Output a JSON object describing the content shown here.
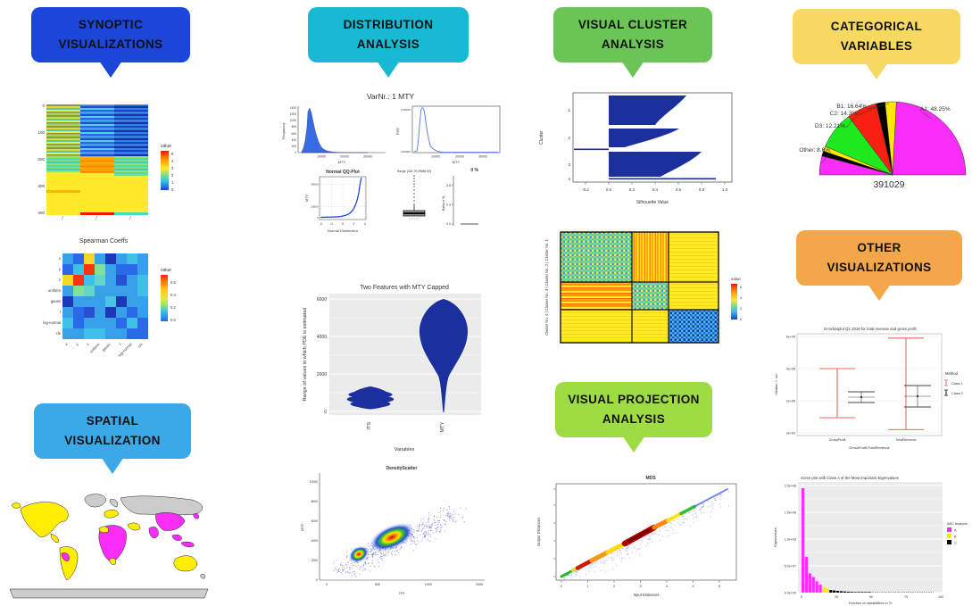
{
  "badges": {
    "synoptic": {
      "label": "SYNOPTIC VISUALIZATIONS",
      "color": "#1b46d9"
    },
    "distribution": {
      "label": "DISTRIBUTION ANALYSIS",
      "color": "#17b9d3"
    },
    "cluster": {
      "label": "VISUAL CLUSTER ANALYSIS",
      "color": "#6ac456"
    },
    "categorical": {
      "label": "CATEGORICAL VARIABLES",
      "color": "#f7d961"
    },
    "spatial": {
      "label": "SPATIAL VISUALIZATION",
      "color": "#3ba8e8"
    },
    "projection": {
      "label": "VISUAL PROJECTION ANALYSIS",
      "color": "#9fdb43"
    },
    "other": {
      "label": "OTHER VISUALIZATIONS",
      "color": "#f4a64a"
    }
  },
  "charts": {
    "synoptic_heatmap": {
      "yticks": [
        "0",
        "100",
        "200",
        "300",
        "400"
      ],
      "legend_title": "value",
      "legend_ticks": [
        "5",
        "4",
        "3",
        "2",
        "1",
        "0"
      ]
    },
    "spearman": {
      "title": "Spearman Coeffs",
      "labels": [
        "x",
        "y",
        "z",
        "uniform",
        "gauss",
        "t",
        "log-normal",
        "chi"
      ],
      "legend_title": "value",
      "legend_ticks": [
        "0.6",
        "0.4",
        "0.2",
        "0.0"
      ]
    },
    "distribution": {
      "panel_title": "VarNr.: 1 MTY"
    },
    "hist": {
      "ylabel": "Frequency",
      "yticks": [
        "1400",
        "1200",
        "1000",
        "800",
        "600",
        "400",
        "200",
        "0"
      ],
      "xticks": [
        "10000",
        "20000",
        "30000"
      ],
      "xlabel": "MTY"
    },
    "pde": {
      "ylabel": "PDE",
      "yticks": [
        "0.00015",
        "0.00000"
      ],
      "xticks": [
        "10000",
        "20000",
        "30000"
      ],
      "xlabel": "MTY"
    },
    "qq": {
      "title": "Normal QQ-Plot",
      "ylabel": "MTY",
      "xlabel": "Normal Distribution",
      "xticks": [
        "-4",
        "-2",
        "0",
        "2",
        "4"
      ],
      "yticks": [
        "30000",
        "10000",
        "0"
      ]
    },
    "box": {
      "title": "Range [315.79,39884.92]"
    },
    "nans": {
      "pct": "0 %",
      "ylabel": "NaNs in %",
      "yticks": [
        "0.8",
        "0.4",
        "0.0"
      ]
    },
    "violin": {
      "title": "Two Features with MTY Capped",
      "ylabel": "Range of values in which PDE is estimated",
      "xlabel": "Variables",
      "categories": [
        "ITS",
        "MTY"
      ],
      "yticks": [
        "6000",
        "4000",
        "2000",
        "0"
      ]
    },
    "densityscatter": {
      "title": "DensityScatter",
      "xlabel": "ITS",
      "ylabel": "MTY",
      "xticks": [
        "0",
        "500",
        "1000",
        "1500"
      ],
      "yticks": [
        "10000",
        "8000",
        "6000",
        "4000",
        "2000",
        "0"
      ]
    },
    "silhouette": {
      "ylabel": "Cluster",
      "xlabel": "Silhouette Value",
      "yticks": [
        "1",
        "2",
        "3",
        "4"
      ],
      "xticks": [
        "-0.2",
        "0.0",
        "0.2",
        "0.4",
        "0.6",
        "0.8",
        "1.0"
      ]
    },
    "clusterheat": {
      "ylabel": "Cluster No. 4 | Cluster No. 3 | Cluster No. 2 | Cluster No. 1",
      "legend_title": "value",
      "legend_ticks": [
        "6",
        "4",
        "2",
        "0"
      ]
    },
    "mds": {
      "title": "MDS",
      "xlabel": "Input Distances",
      "ylabel": "Output Distances",
      "xticks": [
        "0",
        "1",
        "2",
        "3",
        "4",
        "5",
        "6"
      ]
    },
    "pie": {
      "label_a1": "A1: 48.25%",
      "label_b1": "B1: 16.64%",
      "label_c2": "C2: 14.3%",
      "label_d3": "D3: 12.21%",
      "label_other": "Other: 8.6%",
      "caption": "391029"
    },
    "errorbar": {
      "title": "Errorbarplot Q1 2018 for total revenue and gross profit",
      "ylabel": "Median +- sd",
      "xlabel": "GrossProfit/TotalRevenue",
      "categories": [
        "GrossProfit",
        "TotalRevenue"
      ],
      "yticks": [
        "6e+05",
        "4e+05",
        "2e+05",
        "0e+00"
      ],
      "legend_title": "Method",
      "legend_items": [
        "Class 1",
        "Class 2"
      ]
    },
    "scree": {
      "title": "Scree plot with Class A of the Most important Eigenvalues",
      "ylabel": "Eigenvalues",
      "xlabel": "Fraction of variabilities in %",
      "yticks": [
        "2.0e+08",
        "1.5e+08",
        "1.0e+08",
        "5.0e+07",
        "0.0e+00"
      ],
      "xticks": [
        "0",
        "25",
        "50",
        "75",
        "100"
      ],
      "legend_title": "ABC Analysis",
      "legend_items": [
        "A",
        "B",
        "C"
      ]
    }
  },
  "chart_data": [
    {
      "id": "synoptic-heatmap",
      "type": "heatmap",
      "columns": 3,
      "row_ticks": [
        0,
        100,
        200,
        300,
        400
      ],
      "legend": {
        "title": "value",
        "range": [
          0,
          5
        ]
      },
      "blocks": [
        {
          "rows": [
            0,
            200
          ],
          "col_values": [
            2.5,
            0.8,
            0.7
          ]
        },
        {
          "rows": [
            200,
            300
          ],
          "col_values": [
            1.5,
            4.2,
            1.5
          ]
        },
        {
          "rows": [
            300,
            420
          ],
          "col_values": [
            3.0,
            3.0,
            3.0
          ]
        }
      ]
    },
    {
      "id": "spearman-heatmap",
      "type": "heatmap",
      "title": "Spearman Coeffs",
      "labels": [
        "x",
        "y",
        "z",
        "uniform",
        "gauss",
        "t",
        "log-normal",
        "chi"
      ],
      "legend_range": [
        0,
        0.6
      ],
      "values": [
        [
          0.05,
          0.0,
          0.45,
          0.05,
          -0.1,
          0.05,
          0.08,
          0.05
        ],
        [
          0.0,
          0.08,
          0.65,
          0.2,
          0.05,
          0.0,
          0.0,
          0.05
        ],
        [
          0.45,
          0.65,
          0.08,
          0.15,
          0.05,
          -0.05,
          0.05,
          0.08
        ],
        [
          0.05,
          0.2,
          0.15,
          0.05,
          0.05,
          0.05,
          0.05,
          0.08
        ],
        [
          -0.1,
          0.05,
          0.05,
          0.05,
          0.1,
          -0.1,
          0.05,
          0.05
        ],
        [
          0.05,
          0.0,
          -0.05,
          0.05,
          -0.1,
          0.05,
          0.0,
          0.05
        ],
        [
          0.08,
          0.0,
          0.05,
          0.05,
          0.05,
          0.0,
          0.08,
          0.0
        ],
        [
          0.05,
          0.05,
          0.08,
          0.08,
          0.05,
          0.05,
          0.0,
          0.0
        ]
      ]
    },
    {
      "id": "world-choropleth",
      "type": "map",
      "regions": [
        {
          "color": "#ffee00",
          "areas": [
            "North America",
            "South America",
            "parts of Europe",
            "Middle East",
            "Australia"
          ]
        },
        {
          "color": "#f82ef8",
          "areas": [
            "most of Africa",
            "India",
            "China",
            "Southeast Asia",
            "Andean countries"
          ]
        },
        {
          "color": "#cccccc",
          "areas": [
            "Greenland",
            "Russia",
            "Antarctica",
            "no-data countries"
          ]
        }
      ]
    },
    {
      "id": "mty-histogram",
      "type": "bar",
      "title": "VarNr.: 1 MTY",
      "xlabel": "MTY",
      "ylabel": "Frequency",
      "xlim": [
        0,
        37000
      ],
      "ylim": [
        0,
        1400
      ],
      "bin_start": 1000,
      "bin_width": 1000,
      "frequencies": [
        5,
        60,
        300,
        800,
        1300,
        1400,
        1200,
        950,
        700,
        480,
        300,
        190,
        110,
        60,
        30,
        15,
        8,
        4,
        2,
        1
      ]
    },
    {
      "id": "mty-pde",
      "type": "line",
      "ylabel": "PDE",
      "xlabel": "MTY",
      "xlim": [
        0,
        37000
      ],
      "peak_x": 4500,
      "peak_y": 0.00015
    },
    {
      "id": "qq-plot",
      "type": "scatter",
      "title": "Normal QQ-Plot",
      "xlabel": "Normal Distribution",
      "ylabel": "MTY",
      "xlim": [
        -4,
        4
      ],
      "ylim": [
        0,
        35000
      ],
      "shape": "flat near 0 until z=1 then steeply rising convex curve"
    },
    {
      "id": "mty-boxplot",
      "type": "boxplot",
      "title": "Range [315.79,39884.92]",
      "min": 315.79,
      "max": 39884.92,
      "note": "compressed box near low values, many upper outliers"
    },
    {
      "id": "nan-panel",
      "type": "bar",
      "label": "0 %",
      "ylabel": "NaNs in %",
      "ylim": [
        0,
        0.9
      ],
      "value": 0
    },
    {
      "id": "violin",
      "type": "violin",
      "title": "Two Features with MTY Capped",
      "xlabel": "Variables",
      "ylabel": "Range of values in which PDE is estimated",
      "categories": [
        "ITS",
        "MTY"
      ],
      "ylim": [
        0,
        6200
      ],
      "series": [
        {
          "name": "ITS",
          "range": [
            100,
            1300
          ],
          "mode": 600
        },
        {
          "name": "MTY",
          "range": [
            0,
            6000
          ],
          "mode": 4000,
          "note": "capped at 6000, thin tail to 0"
        }
      ]
    },
    {
      "id": "density-scatter",
      "type": "scatter",
      "title": "DensityScatter",
      "xlabel": "ITS",
      "ylabel": "MTY",
      "xlim": [
        0,
        1500
      ],
      "ylim": [
        0,
        10000
      ],
      "density_cores": [
        {
          "x": 320,
          "y": 2600
        },
        {
          "x": 640,
          "y": 4350
        }
      ],
      "correlation": "positive"
    },
    {
      "id": "silhouette",
      "type": "area",
      "ylabel": "Cluster",
      "xlabel": "Silhouette Value",
      "xlim": [
        -0.3,
        1.05
      ],
      "clusters": [
        {
          "cluster": 1,
          "max": 0.67
        },
        {
          "cluster": 2,
          "max": 0.62,
          "min": -0.3
        },
        {
          "cluster": 3,
          "max": 0.8
        },
        {
          "cluster": 4,
          "max": 0.92
        }
      ]
    },
    {
      "id": "cluster-distance-heatmap",
      "type": "heatmap",
      "ylabel": "Cluster No. 4 | Cluster No. 3 | Cluster No. 2 | Cluster No. 1",
      "legend": {
        "title": "value",
        "ticks": [
          6,
          4,
          2,
          0
        ]
      },
      "block_fractions": [
        0.45,
        0.23,
        0.32
      ]
    },
    {
      "id": "mds-shepard",
      "type": "scatter",
      "title": "MDS",
      "xlabel": "Input Distances",
      "ylabel": "Output Distances",
      "xlim": [
        0,
        6.5
      ],
      "pattern": "dense diagonal band, hottest density near x=3, blue sparse tip at top right"
    },
    {
      "id": "category-pie",
      "type": "pie",
      "caption": "391029",
      "shape": "half-circle",
      "slices": [
        {
          "label": "A1",
          "pct": 48.25,
          "color": "#f82ef8"
        },
        {
          "label": "B1",
          "pct": 16.64,
          "color": "#1ee81e"
        },
        {
          "label": "C2",
          "pct": 14.3,
          "color": "#f82010"
        },
        {
          "label": "D3",
          "pct": 12.21,
          "color": "#000000"
        },
        {
          "label": "Other",
          "pct": 8.6,
          "color": "#ffe800"
        }
      ]
    },
    {
      "id": "errorbar",
      "type": "errorbar",
      "title": "Errorbarplot Q1 2018 for total revenue and gross profit",
      "xlabel": "GrossProfit/TotalRevenue",
      "ylabel": "Median +- sd",
      "ylim": [
        0,
        650000
      ],
      "categories": [
        "GrossProfit",
        "TotalRevenue"
      ],
      "legend": {
        "title": "Method",
        "classes": [
          {
            "name": "Class 1",
            "color": "#f08080"
          },
          {
            "name": "Class 2",
            "color": "#333333"
          }
        ]
      },
      "series": [
        {
          "name": "Class 1",
          "center": [
            220000,
            300000
          ],
          "upper": [
            400000,
            590000
          ],
          "lower": [
            95000,
            20000
          ]
        },
        {
          "name": "Class 2",
          "center": [
            225000,
            225000
          ],
          "upper": [
            255000,
            295000
          ],
          "lower": [
            190000,
            160000
          ]
        }
      ]
    },
    {
      "id": "scree-plot",
      "type": "bar",
      "title": "Scree plot with Class A of the Most important Eigenvalues",
      "xlabel": "Fraction of variabilities in %",
      "ylabel": "Eigenvalues",
      "ylim": [
        0,
        200000000
      ],
      "xticks": [
        0,
        25,
        50,
        75,
        100
      ],
      "legend": {
        "title": "ABC Analysis",
        "classes": [
          {
            "name": "A",
            "color": "#ff2bff"
          },
          {
            "name": "B",
            "color": "#ffe800"
          },
          {
            "name": "C",
            "color": "#000000"
          }
        ]
      },
      "values": [
        195000000,
        67000000,
        36000000,
        29000000,
        21000000,
        15000000,
        11000000,
        8000000,
        5000000,
        4000000,
        3200000,
        2600000,
        2100000,
        1700000,
        1400000,
        1100000,
        900000,
        700000,
        600000,
        500000
      ],
      "classes": [
        "A",
        "A",
        "A",
        "A",
        "A",
        "A",
        "B",
        "B",
        "C",
        "C",
        "C",
        "C",
        "C",
        "C",
        "C",
        "C",
        "C",
        "C",
        "C",
        "C"
      ]
    }
  ]
}
